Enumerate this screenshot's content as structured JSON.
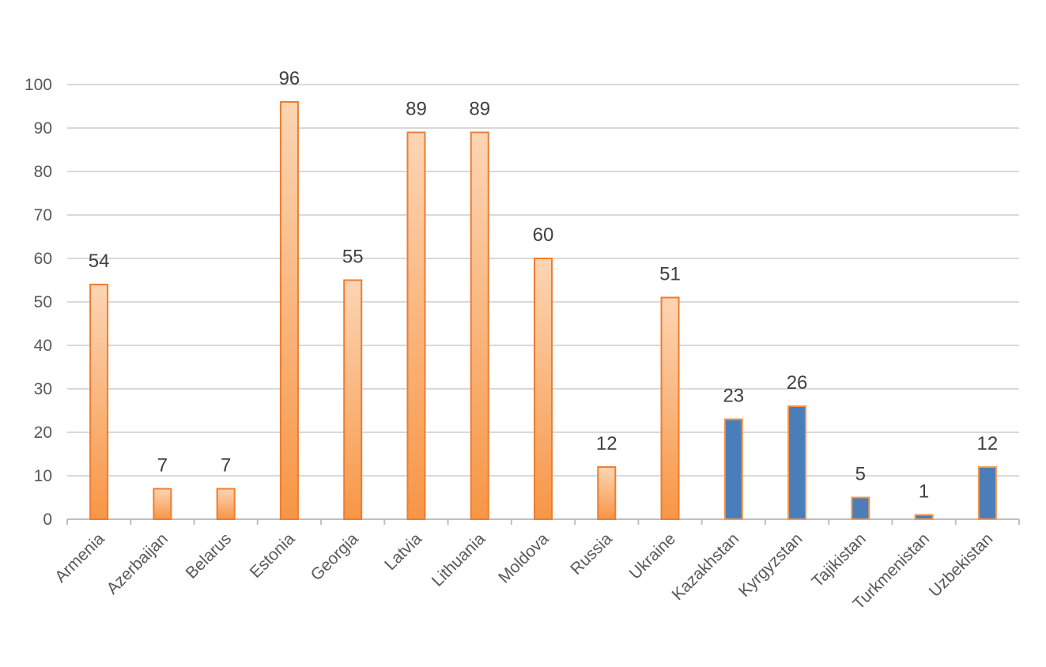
{
  "chart_data": {
    "type": "bar",
    "title": "",
    "xlabel": "",
    "ylabel": "",
    "ylim": [
      0,
      100
    ],
    "yticks": [
      0,
      10,
      20,
      30,
      40,
      50,
      60,
      70,
      80,
      90,
      100
    ],
    "grid": true,
    "legend": "none",
    "categories": [
      "Armenia",
      "Azerbaijan",
      "Belarus",
      "Estonia",
      "Georgia",
      "Latvia",
      "Lithuania",
      "Moldova",
      "Russia",
      "Ukraine",
      "Kazakhstan",
      "Kyrgyzstan",
      "Tajikistan",
      "Turkmenistan",
      "Uzbekistan"
    ],
    "values": [
      54,
      7,
      7,
      96,
      55,
      89,
      89,
      60,
      12,
      51,
      23,
      26,
      5,
      1,
      12
    ],
    "bar_group": [
      "orange",
      "orange",
      "orange",
      "orange",
      "orange",
      "orange",
      "orange",
      "orange",
      "orange",
      "orange",
      "blue",
      "blue",
      "blue",
      "blue",
      "blue"
    ],
    "colors": {
      "orange_top": "#fcd5b4",
      "orange_bottom": "#f79646",
      "orange_border": "#ed7d31",
      "blue_fill": "#4a7ebb",
      "blue_border": "#f79646",
      "grid": "#d9d9d9",
      "axis": "#bfbfbf"
    }
  }
}
